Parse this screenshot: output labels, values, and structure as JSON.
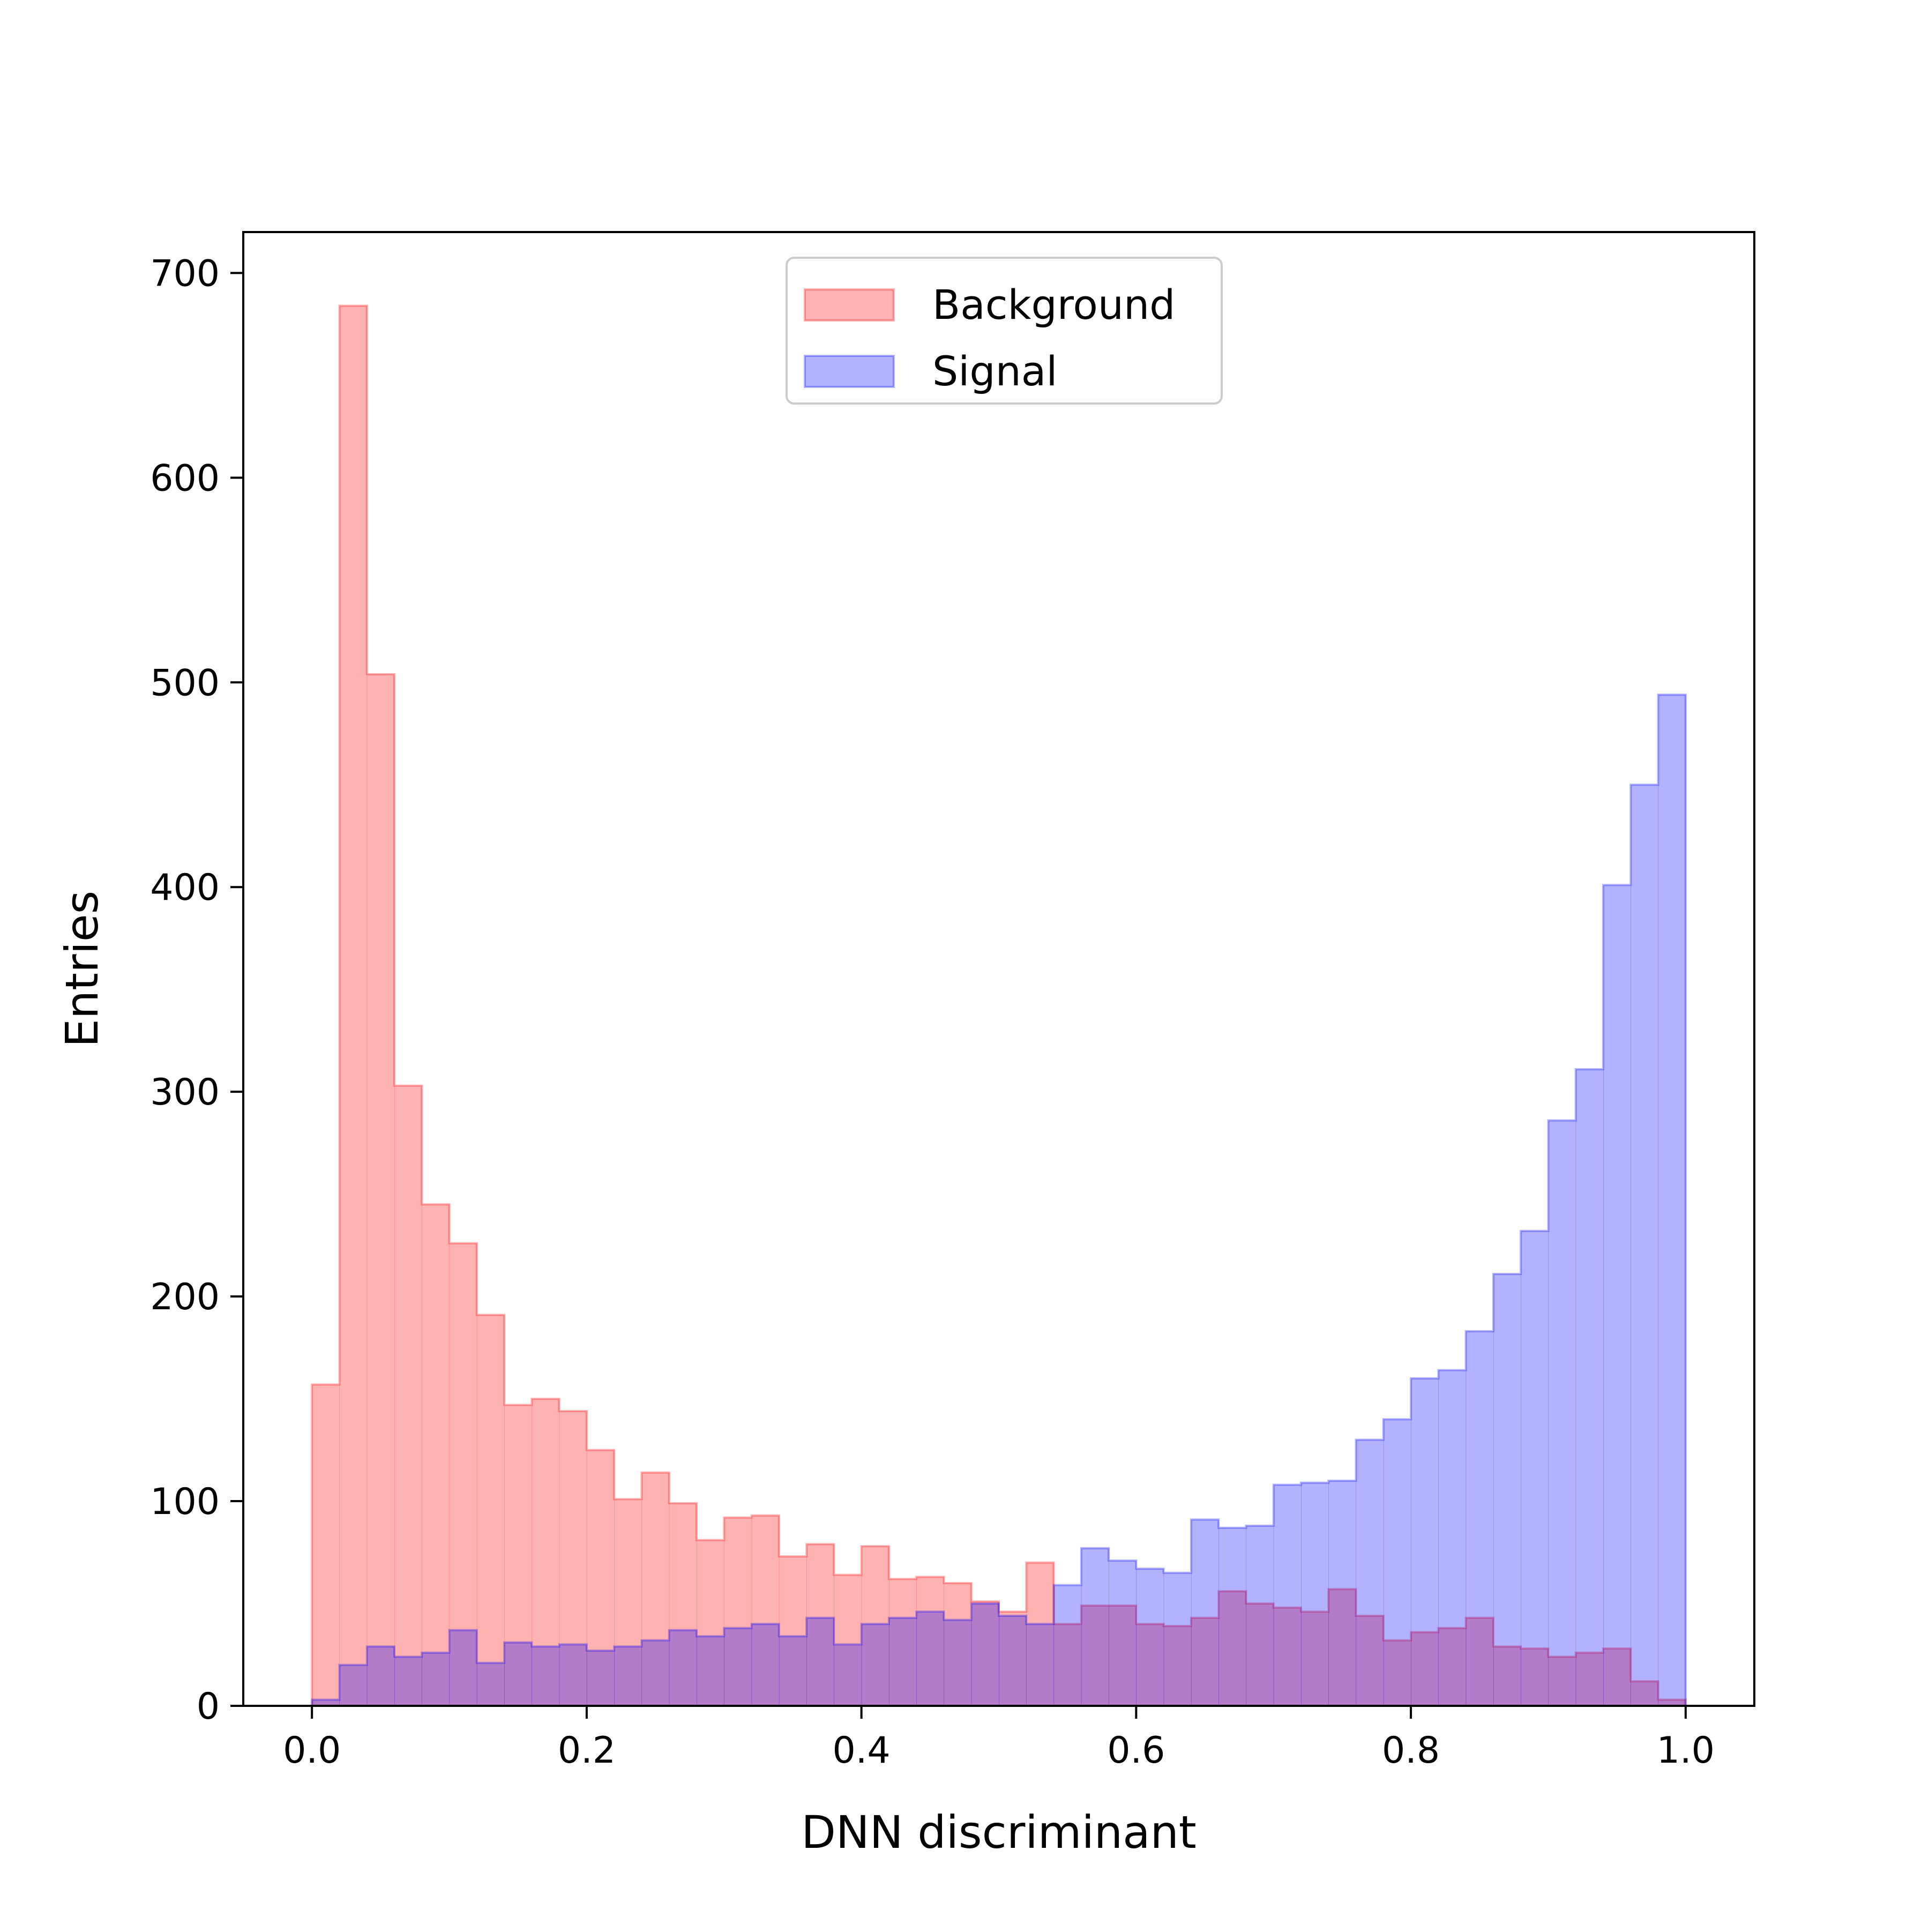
{
  "chart_data": {
    "type": "histogram",
    "title": "",
    "xlabel": "DNN discriminant",
    "ylabel": "Entries",
    "xlim": [
      -0.05,
      1.05
    ],
    "ylim": [
      0,
      720
    ],
    "xticks": [
      0.0,
      0.2,
      0.4,
      0.6,
      0.8,
      1.0
    ],
    "xtick_labels": [
      "0.0",
      "0.2",
      "0.4",
      "0.6",
      "0.8",
      "1.0"
    ],
    "yticks": [
      0,
      100,
      200,
      300,
      400,
      500,
      600,
      700
    ],
    "ytick_labels": [
      "0",
      "100",
      "200",
      "300",
      "400",
      "500",
      "600",
      "700"
    ],
    "grid": false,
    "legend_position": "upper-center",
    "bin_edges": [
      0.0,
      0.02,
      0.04,
      0.06,
      0.08,
      0.1,
      0.12,
      0.14,
      0.16,
      0.18,
      0.2,
      0.22,
      0.24,
      0.26,
      0.28,
      0.3,
      0.32,
      0.34,
      0.36,
      0.38,
      0.4,
      0.42,
      0.44,
      0.46,
      0.48,
      0.5,
      0.52,
      0.54,
      0.56,
      0.58,
      0.6,
      0.62,
      0.64,
      0.66,
      0.68,
      0.7,
      0.72,
      0.74,
      0.76,
      0.78,
      0.8,
      0.82,
      0.84,
      0.86,
      0.88,
      0.9,
      0.92,
      0.94,
      0.96,
      0.98,
      1.0
    ],
    "series": [
      {
        "name": "Background",
        "color": "#ff0000",
        "alpha": 0.3,
        "values": [
          157,
          684,
          504,
          303,
          245,
          226,
          191,
          147,
          150,
          144,
          125,
          101,
          114,
          99,
          81,
          92,
          93,
          73,
          79,
          64,
          78,
          62,
          63,
          60,
          51,
          46,
          70,
          40,
          49,
          49,
          40,
          39,
          43,
          56,
          50,
          48,
          46,
          57,
          44,
          32,
          36,
          38,
          43,
          29,
          28,
          24,
          26,
          28,
          12,
          3
        ]
      },
      {
        "name": "Signal",
        "color": "#0000ff",
        "alpha": 0.3,
        "values": [
          3,
          20,
          29,
          24,
          26,
          37,
          21,
          31,
          29,
          30,
          27,
          29,
          32,
          37,
          34,
          38,
          40,
          34,
          43,
          30,
          40,
          43,
          46,
          42,
          50,
          44,
          40,
          59,
          77,
          71,
          67,
          65,
          91,
          87,
          88,
          108,
          109,
          110,
          130,
          140,
          160,
          164,
          183,
          211,
          232,
          286,
          311,
          401,
          450,
          494
        ]
      }
    ]
  }
}
